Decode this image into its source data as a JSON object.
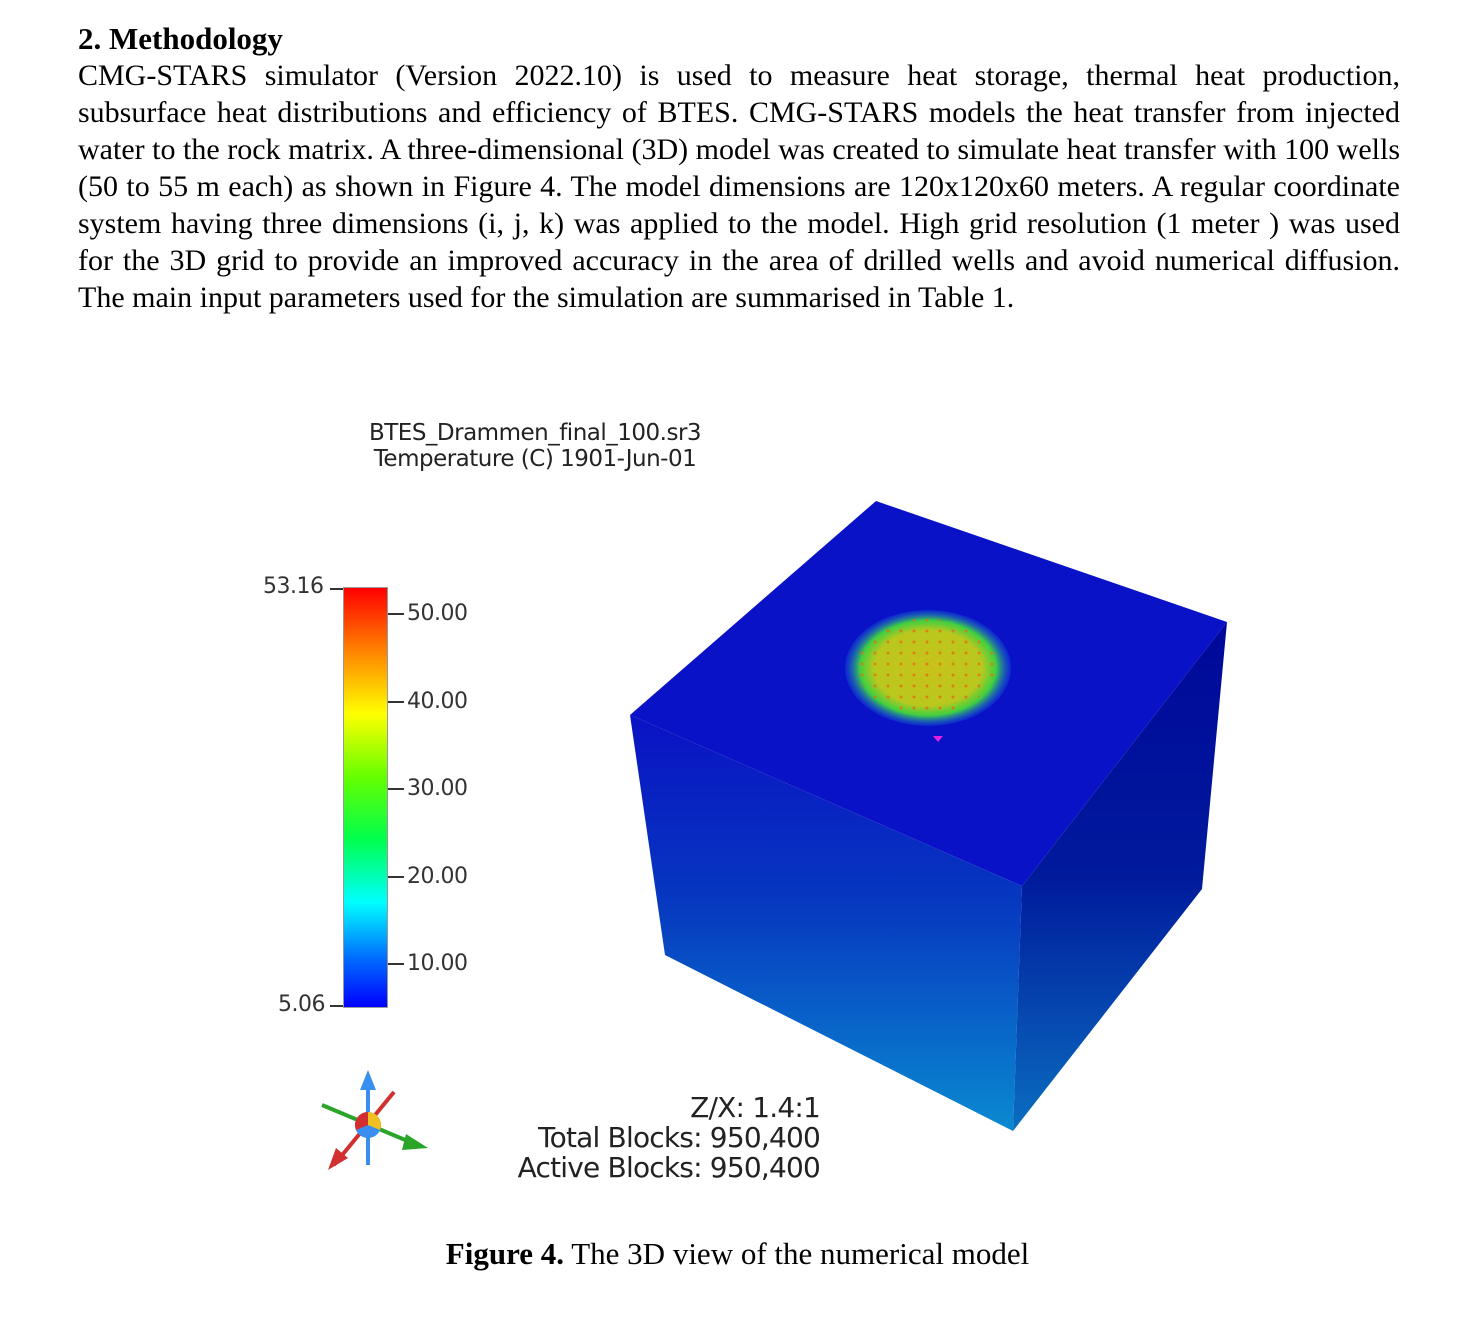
{
  "section": {
    "heading": "2. Methodology",
    "paragraph": "CMG-STARS simulator (Version 2022.10) is used to measure heat storage, thermal heat production, subsurface heat distributions and efficiency of BTES. CMG-STARS models the heat transfer from injected water to the rock matrix. A three-dimensional (3D) model was created to simulate heat transfer with 100 wells (50 to 55 m each) as shown in Figure 4. The model dimensions are 120x120x60 meters. A regular coordinate system having three dimensions (i, j, k) was applied to the model. High grid resolution (1 meter ) was used for the 3D grid to provide an improved accuracy in the area of drilled wells and avoid numerical diffusion. The main input parameters used for the simulation are summarised in Table 1."
  },
  "figure": {
    "file_name": "BTES_Drammen_final_100.sr3",
    "property_line": "Temperature (C) 1901-Jun-01",
    "scale": {
      "max": "53.16",
      "min": "5.06",
      "ticks": [
        "50.00",
        "40.00",
        "30.00",
        "20.00",
        "10.00"
      ]
    },
    "info": {
      "ratio": "Z/X: 1.4:1",
      "total_blocks": "Total Blocks: 950,400",
      "active_blocks": "Active Blocks: 950,400"
    },
    "caption_label": "Figure 4.",
    "caption_text": " The 3D view of the numerical model"
  }
}
